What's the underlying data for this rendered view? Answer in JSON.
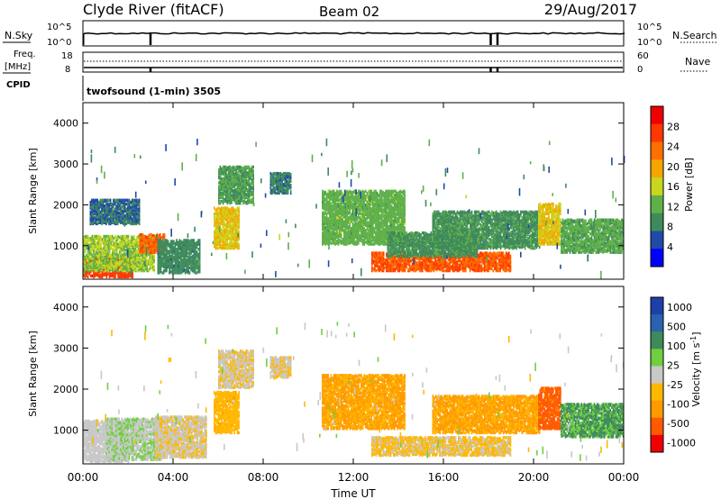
{
  "header": {
    "station": "Clyde River (fitACF)",
    "beam": "Beam 02",
    "date": "29/Aug/2017"
  },
  "top_panels": {
    "nsky_label": "N.Sky",
    "nsearch_label": "N.Search",
    "left_ticks_top": [
      "10^5",
      "10^0"
    ],
    "right_ticks_top": [
      "10^5",
      "10^0"
    ],
    "freq_label": "Freq.",
    "freq_unit": "[MHz]",
    "freq_ticks": [
      "18",
      "8"
    ],
    "nave_ticks": [
      "60",
      "0"
    ],
    "nave_label": "Nave",
    "cpid_label": "CPID",
    "cpid_text": "twofsound (1-min) 3505"
  },
  "colors": {
    "power_scale": [
      "#0000ff",
      "#1f4aa8",
      "#3f8a5c",
      "#5fb04a",
      "#c8d61f",
      "#f5a600",
      "#ff7000",
      "#ff3800",
      "#ee0000"
    ],
    "velocity_scale": [
      "#ee0000",
      "#ff5a00",
      "#ff9a00",
      "#ffb800",
      "#c8c8c8",
      "#6fcf3f",
      "#3f8a5c",
      "#2a62b0",
      "#1f3fa8"
    ]
  },
  "chart_data": [
    {
      "type": "heatmap",
      "name": "power",
      "xlabel": "",
      "ylabel": "Slant Range [km]",
      "xlim": [
        "00:00",
        "24:00"
      ],
      "ylim": [
        180,
        4500
      ],
      "yticks": [
        "1000",
        "2000",
        "3000",
        "4000"
      ],
      "colorbar": {
        "label": "Power [dB]",
        "ticks": [
          "4",
          "8",
          "12",
          "16",
          "20",
          "24",
          "28"
        ],
        "range": [
          0,
          32
        ]
      },
      "blobs": [
        {
          "t0": 0.0,
          "t1": 2.2,
          "r0": 200,
          "r1": 700,
          "v": 28
        },
        {
          "t0": 0.0,
          "t1": 3.2,
          "r0": 350,
          "r1": 1200,
          "v": 14
        },
        {
          "t0": 0.3,
          "t1": 2.5,
          "r0": 1500,
          "r1": 2100,
          "v": 6
        },
        {
          "t0": 2.5,
          "t1": 3.6,
          "r0": 800,
          "r1": 1250,
          "v": 25
        },
        {
          "t0": 3.3,
          "t1": 5.2,
          "r0": 300,
          "r1": 1100,
          "v": 8
        },
        {
          "t0": 5.8,
          "t1": 6.9,
          "r0": 900,
          "r1": 1900,
          "v": 18
        },
        {
          "t0": 6.0,
          "t1": 7.6,
          "r0": 2000,
          "r1": 2900,
          "v": 10
        },
        {
          "t0": 8.3,
          "t1": 9.2,
          "r0": 2250,
          "r1": 2750,
          "v": 7
        },
        {
          "t0": 10.6,
          "t1": 14.3,
          "r0": 1000,
          "r1": 2300,
          "v": 12
        },
        {
          "t0": 12.8,
          "t1": 19.0,
          "r0": 350,
          "r1": 800,
          "v": 26
        },
        {
          "t0": 13.5,
          "t1": 17.5,
          "r0": 700,
          "r1": 1300,
          "v": 9
        },
        {
          "t0": 15.5,
          "t1": 20.3,
          "r0": 900,
          "r1": 1800,
          "v": 9
        },
        {
          "t0": 20.2,
          "t1": 21.2,
          "r0": 1000,
          "r1": 2000,
          "v": 18
        },
        {
          "t0": 21.2,
          "t1": 24.0,
          "r0": 800,
          "r1": 1600,
          "v": 11
        }
      ]
    },
    {
      "type": "heatmap",
      "name": "velocity",
      "xlabel": "Time UT",
      "ylabel": "Slant Range [km]",
      "xlim": [
        "00:00",
        "24:00"
      ],
      "ylim": [
        180,
        4500
      ],
      "xticks": [
        "00:00",
        "04:00",
        "08:00",
        "12:00",
        "16:00",
        "20:00",
        "00:00"
      ],
      "yticks": [
        "1000",
        "2000",
        "3000",
        "4000"
      ],
      "colorbar": {
        "label": "Velocity [m s^-1]",
        "ticks": [
          "1000",
          "500",
          "100",
          "25",
          "-25",
          "-100",
          "-500",
          "-1000"
        ]
      },
      "blobs": [
        {
          "t0": 0.0,
          "t1": 2.0,
          "r0": 200,
          "r1": 1200,
          "v": 0
        },
        {
          "t0": 1.0,
          "t1": 3.5,
          "r0": 250,
          "r1": 1250,
          "v": 100
        },
        {
          "t0": 3.2,
          "t1": 5.5,
          "r0": 300,
          "r1": 1300,
          "v": -100
        },
        {
          "t0": 5.8,
          "t1": 6.9,
          "r0": 900,
          "r1": 1900,
          "v": -300
        },
        {
          "t0": 6.0,
          "t1": 7.6,
          "r0": 2000,
          "r1": 2900,
          "v": -100
        },
        {
          "t0": 8.3,
          "t1": 9.2,
          "r0": 2250,
          "r1": 2750,
          "v": -100
        },
        {
          "t0": 10.6,
          "t1": 14.3,
          "r0": 1000,
          "r1": 2300,
          "v": -400
        },
        {
          "t0": 12.8,
          "t1": 19.0,
          "r0": 350,
          "r1": 800,
          "v": -150
        },
        {
          "t0": 15.5,
          "t1": 20.3,
          "r0": 900,
          "r1": 1800,
          "v": -400
        },
        {
          "t0": 20.2,
          "t1": 21.2,
          "r0": 1000,
          "r1": 2000,
          "v": -700
        },
        {
          "t0": 21.2,
          "t1": 24.0,
          "r0": 800,
          "r1": 1600,
          "v": 400
        }
      ]
    }
  ]
}
